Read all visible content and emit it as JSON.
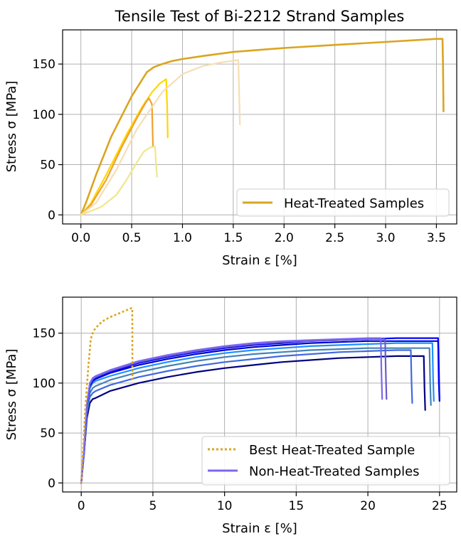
{
  "chart_data": [
    {
      "type": "line",
      "title": "Tensile Test of Bi-2212 Strand Samples",
      "xlabel": "Strain ε [%]",
      "ylabel": "Stress σ [MPa]",
      "xlim": [
        -0.18,
        3.7
      ],
      "ylim": [
        -9,
        184
      ],
      "xticks": [
        0.0,
        0.5,
        1.0,
        1.5,
        2.0,
        2.5,
        3.0,
        3.5
      ],
      "xtick_labels": [
        "0.0",
        "0.5",
        "1.0",
        "1.5",
        "2.0",
        "2.5",
        "3.0",
        "3.5"
      ],
      "yticks": [
        0,
        50,
        100,
        150
      ],
      "ytick_labels": [
        "0",
        "50",
        "100",
        "150"
      ],
      "grid": true,
      "legend": {
        "placement": "lower-right",
        "entries": [
          {
            "label": "Heat-Treated Samples",
            "color": "#daa520",
            "style": "solid"
          }
        ]
      },
      "series": [
        {
          "color": "#daa520",
          "width": 2.6,
          "style": "solid",
          "x": [
            0.0,
            0.05,
            0.15,
            0.3,
            0.5,
            0.65,
            0.72,
            0.8,
            0.9,
            1.0,
            1.2,
            1.5,
            2.0,
            2.5,
            3.0,
            3.5,
            3.56,
            3.565,
            3.57
          ],
          "y": [
            0,
            12,
            40,
            78,
            118,
            142,
            147,
            150,
            153,
            155,
            158,
            162,
            166,
            169,
            172,
            175,
            175,
            150,
            103
          ]
        },
        {
          "color": "#ffd700",
          "width": 2.2,
          "style": "solid",
          "x": [
            0.0,
            0.1,
            0.25,
            0.45,
            0.6,
            0.7,
            0.78,
            0.84,
            0.85,
            0.855
          ],
          "y": [
            0,
            12,
            40,
            80,
            107,
            122,
            131,
            135,
            105,
            77
          ]
        },
        {
          "color": "#f0a030",
          "width": 2.2,
          "style": "solid",
          "x": [
            0.0,
            0.1,
            0.25,
            0.4,
            0.55,
            0.64,
            0.67,
            0.7,
            0.705,
            0.71
          ],
          "y": [
            0,
            10,
            35,
            67,
            96,
            112,
            116,
            110,
            85,
            68
          ]
        },
        {
          "color": "#f5deb3",
          "width": 2.2,
          "style": "solid",
          "x": [
            0.0,
            0.15,
            0.35,
            0.55,
            0.8,
            1.0,
            1.2,
            1.4,
            1.55,
            1.56,
            1.565
          ],
          "y": [
            0,
            12,
            45,
            85,
            122,
            140,
            148,
            152,
            154,
            115,
            90
          ]
        },
        {
          "color": "#f0e68c",
          "width": 2.2,
          "style": "solid",
          "x": [
            0.0,
            0.2,
            0.35,
            0.45,
            0.55,
            0.62,
            0.68,
            0.73,
            0.74,
            0.75
          ],
          "y": [
            0,
            8,
            20,
            35,
            52,
            63,
            67,
            68,
            50,
            38
          ]
        }
      ]
    },
    {
      "type": "line",
      "title": "",
      "xlabel": "Strain ε [%]",
      "ylabel": "Stress σ [MPa]",
      "xlim": [
        -1.3,
        26.2
      ],
      "ylim": [
        -9,
        186
      ],
      "xticks": [
        0,
        5,
        10,
        15,
        20,
        25
      ],
      "xtick_labels": [
        "0",
        "5",
        "10",
        "15",
        "20",
        "25"
      ],
      "yticks": [
        0,
        50,
        100,
        150
      ],
      "ytick_labels": [
        "0",
        "50",
        "100",
        "150"
      ],
      "grid": true,
      "legend": {
        "placement": "lower-right",
        "entries": [
          {
            "label": "Best Heat-Treated Sample",
            "color": "#daa520",
            "style": "dotted"
          },
          {
            "label": "Non-Heat-Treated Samples",
            "color": "#7b68ee",
            "style": "solid"
          }
        ]
      },
      "series": [
        {
          "color": "#000080",
          "width": 2.2,
          "style": "solid",
          "x": [
            0,
            0.2,
            0.4,
            0.6,
            0.8,
            1.0,
            2,
            4,
            6,
            8,
            10,
            12,
            14,
            16,
            18,
            20,
            22,
            23.9,
            23.95,
            24.0
          ],
          "y": [
            0,
            30,
            65,
            80,
            84,
            85,
            92,
            100,
            106,
            111,
            115,
            118,
            121,
            123,
            125,
            126,
            127,
            127,
            95,
            73
          ]
        },
        {
          "color": "#4169e1",
          "width": 2.2,
          "style": "solid",
          "x": [
            0,
            0.2,
            0.4,
            0.6,
            0.8,
            1.0,
            2,
            4,
            6,
            8,
            10,
            12,
            14,
            16,
            18,
            20,
            22,
            23.0,
            23.05,
            23.1
          ],
          "y": [
            0,
            30,
            70,
            86,
            90,
            92,
            98,
            106,
            112,
            117,
            121,
            124,
            127,
            129,
            131,
            132,
            133,
            133,
            100,
            80
          ]
        },
        {
          "color": "#4682b4",
          "width": 2.2,
          "style": "solid",
          "x": [
            0,
            0.2,
            0.4,
            0.6,
            0.8,
            1.0,
            2,
            4,
            6,
            8,
            10,
            12,
            14,
            16,
            18,
            20,
            22,
            24.3,
            24.35,
            24.4
          ],
          "y": [
            0,
            32,
            72,
            90,
            95,
            97,
            103,
            111,
            117,
            122,
            126,
            129,
            131,
            133,
            134,
            135,
            135,
            135,
            100,
            78
          ]
        },
        {
          "color": "#1e90ff",
          "width": 2.2,
          "style": "solid",
          "x": [
            0,
            0.2,
            0.4,
            0.6,
            0.8,
            1.0,
            2,
            4,
            6,
            8,
            10,
            12,
            14,
            16,
            18,
            20,
            22,
            24.5,
            24.55,
            24.6
          ],
          "y": [
            0,
            32,
            75,
            95,
            100,
            102,
            107,
            115,
            121,
            126,
            130,
            133,
            135,
            137,
            138,
            139,
            140,
            140,
            105,
            82
          ]
        },
        {
          "color": "#0000cd",
          "width": 2.2,
          "style": "solid",
          "x": [
            0,
            0.2,
            0.4,
            0.6,
            0.8,
            1.0,
            2,
            4,
            6,
            8,
            10,
            12,
            14,
            16,
            18,
            20,
            22,
            24.9,
            24.95,
            25.0
          ],
          "y": [
            0,
            33,
            77,
            97,
            102,
            104,
            110,
            118,
            124,
            129,
            133,
            136,
            138,
            140,
            141,
            142,
            142,
            142,
            100,
            82
          ]
        },
        {
          "color": "#0000ff",
          "width": 2.2,
          "style": "solid",
          "x": [
            0,
            0.2,
            0.4,
            0.6,
            0.8,
            1.0,
            2,
            4,
            6,
            8,
            10,
            12,
            14,
            16,
            18,
            20,
            22,
            24.9,
            24.95,
            25.0
          ],
          "y": [
            0,
            34,
            78,
            98,
            103,
            105,
            111,
            120,
            126,
            131,
            135,
            138,
            140,
            142,
            143,
            144,
            145,
            145,
            115,
            84
          ]
        },
        {
          "color": "#6a5acd",
          "width": 2.2,
          "style": "solid",
          "x": [
            0,
            0.2,
            0.4,
            0.6,
            0.8,
            1.0,
            2,
            4,
            6,
            8,
            10,
            12,
            14,
            16,
            18,
            20,
            21.2,
            21.25,
            21.3
          ],
          "y": [
            0,
            34,
            78,
            99,
            104,
            106,
            112,
            121,
            127,
            132,
            136,
            139,
            141,
            142,
            143,
            144,
            144,
            110,
            84
          ]
        },
        {
          "color": "#7b68ee",
          "width": 2.2,
          "style": "solid",
          "x": [
            0,
            0.2,
            0.4,
            0.6,
            0.8,
            1.0,
            2,
            4,
            6,
            8,
            10,
            12,
            14,
            16,
            18,
            20,
            20.9,
            20.95,
            21.0
          ],
          "y": [
            0,
            35,
            79,
            100,
            105,
            107,
            113,
            122,
            128,
            133,
            137,
            140,
            142,
            143,
            144,
            145,
            145,
            110,
            84
          ]
        },
        {
          "color": "#daa520",
          "width": 2.6,
          "style": "dotted",
          "x": [
            0.0,
            0.05,
            0.15,
            0.3,
            0.5,
            0.65,
            0.72,
            0.8,
            0.9,
            1.0,
            1.2,
            1.5,
            2.0,
            2.5,
            3.0,
            3.5,
            3.56,
            3.565,
            3.57
          ],
          "y": [
            0,
            12,
            40,
            78,
            118,
            142,
            147,
            150,
            153,
            155,
            158,
            162,
            166,
            169,
            172,
            175,
            175,
            150,
            103
          ]
        }
      ]
    }
  ]
}
